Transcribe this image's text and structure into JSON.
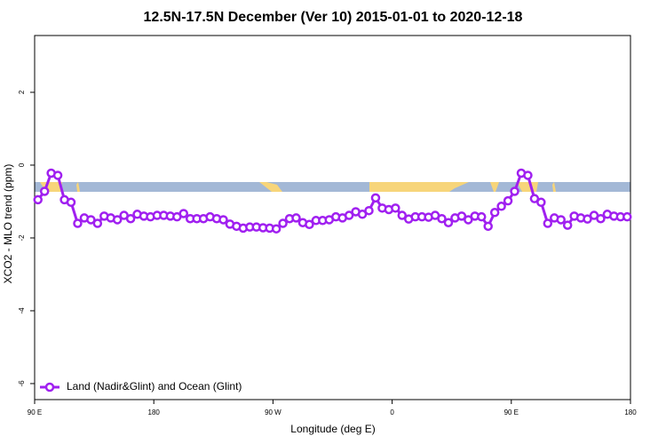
{
  "chart_data": {
    "type": "line",
    "title": "12.5N-17.5N December (Ver 10)   2015-01-01 to 2020-12-18",
    "x_label": "Longitude (deg E)",
    "y_label": "XCO2 - MLO trend (ppm)",
    "x": [
      92.5,
      97.5,
      102.5,
      107.5,
      112.5,
      117.5,
      122.5,
      127.5,
      132.5,
      137.5,
      142.5,
      147.5,
      152.5,
      157.5,
      162.5,
      167.5,
      172.5,
      177.5,
      182.5,
      187.5,
      192.5,
      197.5,
      202.5,
      207.5,
      212.5,
      217.5,
      222.5,
      227.5,
      232.5,
      237.5,
      242.5,
      247.5,
      252.5,
      257.5,
      262.5,
      267.5,
      272.5,
      277.5,
      282.5,
      287.5,
      292.5,
      297.5,
      302.5,
      307.5,
      312.5,
      317.5,
      322.5,
      327.5,
      332.5,
      337.5,
      342.5,
      347.5,
      352.5,
      357.5,
      362.5,
      367.5,
      372.5,
      377.5,
      382.5,
      387.5,
      392.5,
      397.5,
      402.5,
      407.5,
      412.5,
      417.5,
      422.5,
      427.5,
      432.5,
      437.5,
      442.5,
      447.5,
      452.5,
      457.5,
      462.5,
      467.5,
      472.5,
      477.5,
      482.5,
      487.5,
      492.5,
      497.5,
      502.5,
      507.5,
      512.5,
      517.5,
      522.5,
      527.5,
      532.5,
      537.5
    ],
    "series": [
      {
        "name": "Land (Nadir&Glint) and Ocean (Glint)",
        "color": "#a020f0",
        "values": [
          -0.95,
          -0.72,
          -0.22,
          -0.28,
          -0.95,
          -1.02,
          -1.6,
          -1.45,
          -1.5,
          -1.6,
          -1.4,
          -1.45,
          -1.5,
          -1.38,
          -1.47,
          -1.35,
          -1.4,
          -1.42,
          -1.38,
          -1.38,
          -1.4,
          -1.42,
          -1.33,
          -1.47,
          -1.47,
          -1.47,
          -1.42,
          -1.47,
          -1.5,
          -1.62,
          -1.68,
          -1.73,
          -1.7,
          -1.7,
          -1.72,
          -1.73,
          -1.75,
          -1.6,
          -1.47,
          -1.45,
          -1.58,
          -1.63,
          -1.52,
          -1.52,
          -1.5,
          -1.42,
          -1.45,
          -1.38,
          -1.28,
          -1.35,
          -1.25,
          -0.9,
          -1.18,
          -1.22,
          -1.18,
          -1.38,
          -1.48,
          -1.42,
          -1.42,
          -1.43,
          -1.38,
          -1.47,
          -1.58,
          -1.45,
          -1.4,
          -1.5,
          -1.4,
          -1.42,
          -1.68,
          -1.3,
          -1.13,
          -0.98,
          -0.72,
          -0.22,
          -0.28,
          -0.92,
          -1.02,
          -1.6,
          -1.45,
          -1.5,
          -1.65,
          -1.4,
          -1.45,
          -1.48,
          -1.38,
          -1.47,
          -1.35,
          -1.4,
          -1.42,
          -1.42
        ]
      }
    ],
    "xlim": [
      90,
      540
    ],
    "xticks": [
      {
        "value": 90,
        "label": "90 E"
      },
      180,
      {
        "value": 270,
        "label": "90 W"
      },
      {
        "value": 360,
        "label": "0"
      },
      {
        "value": 450,
        "label": "90 E"
      },
      {
        "value": 540,
        "label": "180"
      }
    ],
    "ylim": [
      -6.44,
      3.56
    ],
    "yticks": [
      -6,
      -4,
      -2,
      0,
      2
    ],
    "legend": "bottom-left"
  }
}
